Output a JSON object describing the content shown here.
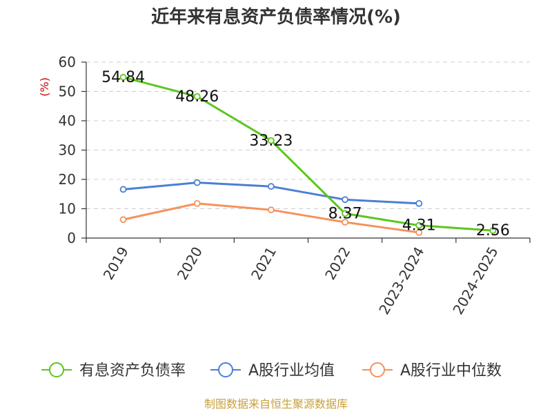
{
  "chart_data": {
    "type": "line",
    "title": "近年来有息资产负债率情况(%)",
    "ylabel": "(%)",
    "xlabel": "",
    "ylim": [
      0,
      60
    ],
    "yticks": [
      0,
      10,
      20,
      30,
      40,
      50,
      60
    ],
    "grid": true,
    "legend_position": "bottom",
    "categories": [
      "2019",
      "2020",
      "2021",
      "2022",
      "2023-2024",
      "2024-2025"
    ],
    "series": [
      {
        "name": "有息资产负债率",
        "color": "#5cc51e",
        "values": [
          54.84,
          48.26,
          33.23,
          8.37,
          4.31,
          2.56
        ],
        "labels": [
          "54.84",
          "48.26",
          "33.23",
          "8.37",
          "4.31",
          "2.56"
        ]
      },
      {
        "name": "A股行业均值",
        "color": "#4a7fd4",
        "values": [
          16.6,
          18.9,
          17.6,
          13.1,
          11.8,
          null
        ]
      },
      {
        "name": "A股行业中位数",
        "color": "#f5915a",
        "values": [
          6.3,
          11.8,
          9.6,
          5.4,
          1.9,
          null
        ]
      }
    ],
    "source": "制图数据来自恒生聚源数据库"
  }
}
